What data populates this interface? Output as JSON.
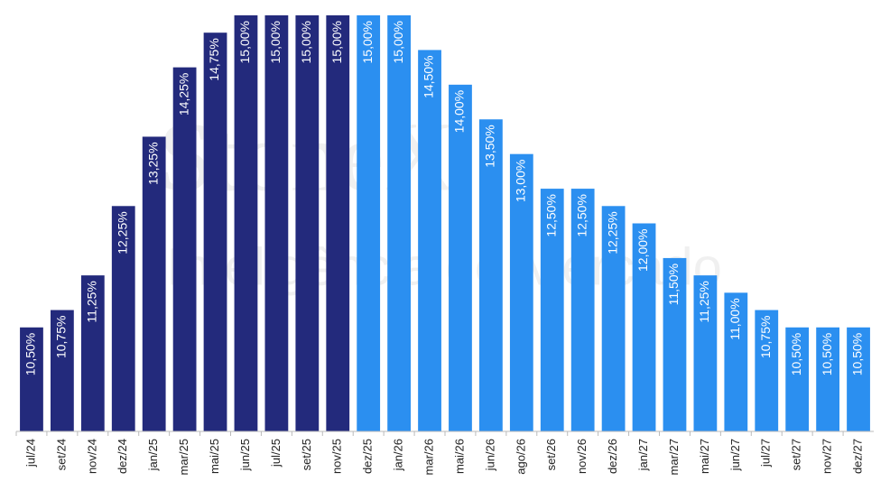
{
  "watermark": {
    "brand": "StoneX",
    "subtitle": "Inteligência de Mercado"
  },
  "chart_data": {
    "type": "bar",
    "categories": [
      "jul/24",
      "set/24",
      "nov/24",
      "dez/24",
      "jan/25",
      "mar/25",
      "mai/25",
      "jun/25",
      "jul/25",
      "set/25",
      "nov/25",
      "dez/25",
      "jan/26",
      "mar/26",
      "mai/26",
      "jun/26",
      "ago/26",
      "set/26",
      "nov/26",
      "dez/26",
      "jan/27",
      "mar/27",
      "mai/27",
      "jun/27",
      "jul/27",
      "set/27",
      "nov/27",
      "dez/27"
    ],
    "values": [
      10.5,
      10.75,
      11.25,
      12.25,
      13.25,
      14.25,
      14.75,
      15,
      15,
      15,
      15,
      15,
      15,
      14.5,
      14,
      13.5,
      13,
      12.5,
      12.5,
      12.25,
      12,
      11.5,
      11.25,
      11,
      10.75,
      10.5,
      10.5,
      10.5
    ],
    "value_labels": [
      "10,50%",
      "10,75%",
      "11,25%",
      "12,25%",
      "13,25%",
      "14,25%",
      "14,75%",
      "15,00%",
      "15,00%",
      "15,00%",
      "15,00%",
      "15,00%",
      "15,00%",
      "14,50%",
      "14,00%",
      "13,50%",
      "13,00%",
      "12,50%",
      "12,50%",
      "12,25%",
      "12,00%",
      "11,50%",
      "11,25%",
      "11,00%",
      "10,75%",
      "10,50%",
      "10,50%",
      "10,50%"
    ],
    "colors": [
      "#232a7c",
      "#232a7c",
      "#232a7c",
      "#232a7c",
      "#232a7c",
      "#232a7c",
      "#232a7c",
      "#232a7c",
      "#232a7c",
      "#232a7c",
      "#232a7c",
      "#2b8ff0",
      "#2b8ff0",
      "#2b8ff0",
      "#2b8ff0",
      "#2b8ff0",
      "#2b8ff0",
      "#2b8ff0",
      "#2b8ff0",
      "#2b8ff0",
      "#2b8ff0",
      "#2b8ff0",
      "#2b8ff0",
      "#2b8ff0",
      "#2b8ff0",
      "#2b8ff0",
      "#2b8ff0",
      "#2b8ff0"
    ],
    "ylim": [
      9,
      15
    ]
  }
}
